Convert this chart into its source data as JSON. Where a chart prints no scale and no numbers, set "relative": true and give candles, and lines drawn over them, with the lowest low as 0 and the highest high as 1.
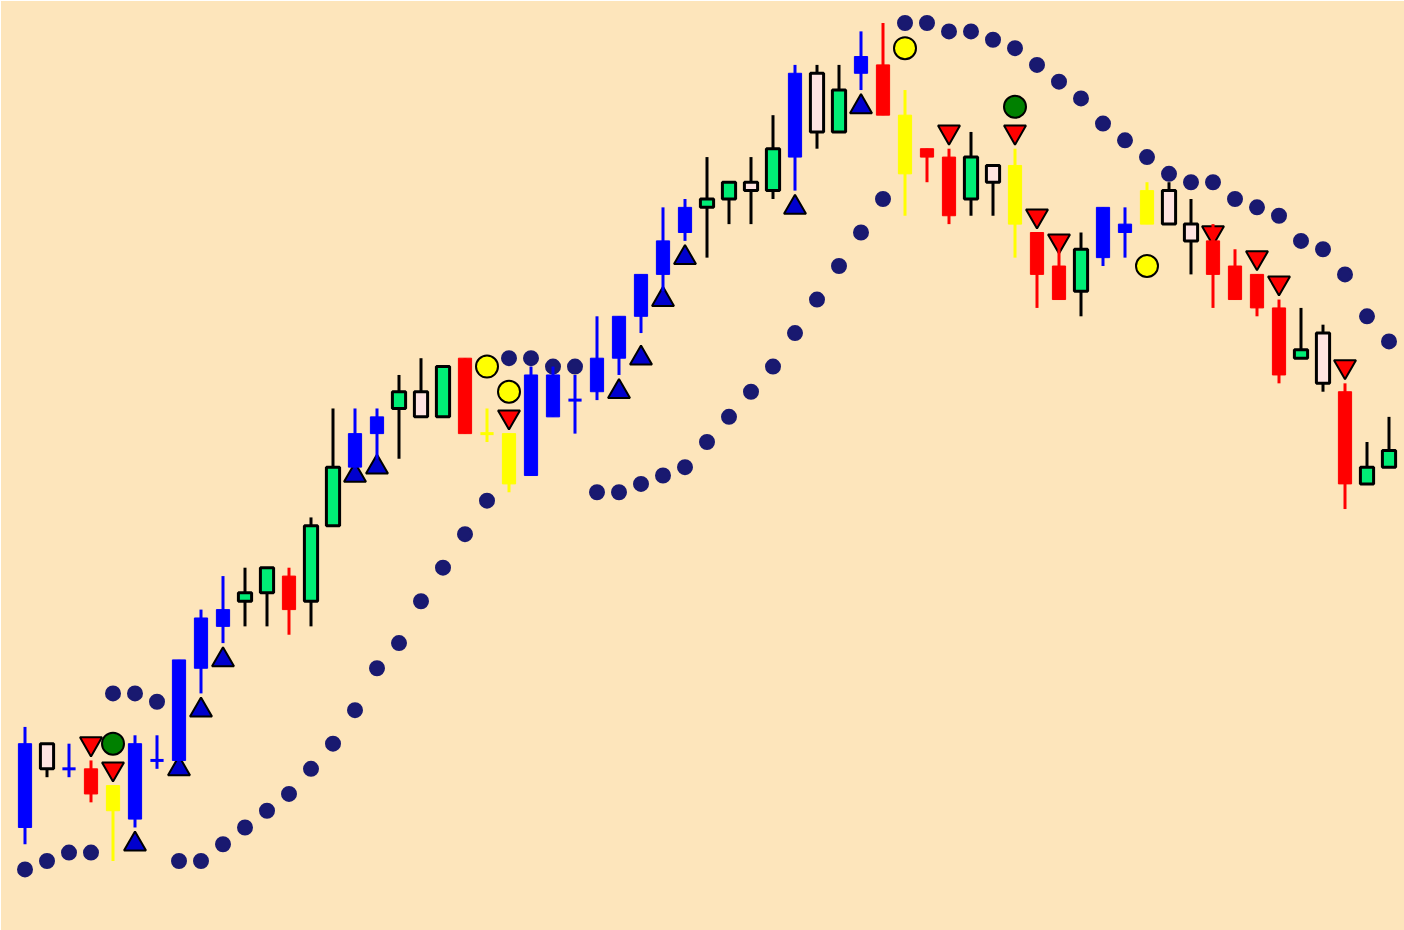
{
  "chart_data": {
    "type": "candlestick",
    "relative": true,
    "categories": [
      null,
      null,
      null,
      null,
      null,
      null,
      null,
      null,
      null,
      null,
      null,
      null,
      null,
      null,
      null,
      null,
      null,
      null,
      null,
      null,
      null,
      null,
      null,
      null,
      null,
      null,
      null,
      null,
      null,
      null,
      null,
      null,
      null,
      null,
      null,
      null,
      null,
      null,
      null,
      null,
      null,
      null,
      null,
      null,
      null,
      null,
      null,
      null,
      null,
      null,
      null,
      null,
      null,
      null,
      null,
      null,
      null,
      null,
      null,
      null,
      null,
      null,
      null
    ],
    "ohlc": [
      [
        0.04,
        0.16,
        0.02,
        0.14
      ],
      [
        0.11,
        0.14,
        0.1,
        0.14
      ],
      [
        0.11,
        0.14,
        0.1,
        0.11
      ],
      [
        0.11,
        0.12,
        0.07,
        0.08
      ],
      [
        0.09,
        0.09,
        0,
        0.06
      ],
      [
        0.05,
        0.15,
        0.04,
        0.14
      ],
      [
        0.12,
        0.15,
        0.11,
        0.12
      ],
      [
        0.12,
        0.24,
        0.12,
        0.24
      ],
      [
        0.23,
        0.3,
        0.2,
        0.29
      ],
      [
        0.28,
        0.34,
        0.26,
        0.3
      ],
      [
        0.31,
        0.35,
        0.28,
        0.32
      ],
      [
        0.32,
        0.35,
        0.28,
        0.35
      ],
      [
        0.34,
        0.35,
        0.27,
        0.3
      ],
      [
        0.31,
        0.41,
        0.28,
        0.4
      ],
      [
        0.4,
        0.54,
        0.4,
        0.47
      ],
      [
        0.47,
        0.54,
        0.47,
        0.51
      ],
      [
        0.51,
        0.54,
        0.48,
        0.53
      ],
      [
        0.54,
        0.58,
        0.48,
        0.56
      ],
      [
        0.53,
        0.6,
        0.53,
        0.56
      ],
      [
        0.53,
        0.59,
        0.53,
        0.59
      ],
      [
        0.6,
        0.6,
        0.51,
        0.51
      ],
      [
        0.51,
        0.54,
        0.5,
        0.51
      ],
      [
        0.51,
        0.51,
        0.44,
        0.45
      ],
      [
        0.46,
        0.59,
        0.46,
        0.58
      ],
      [
        0.53,
        0.59,
        0.53,
        0.58
      ],
      [
        0.55,
        0.58,
        0.51,
        0.55
      ],
      [
        0.56,
        0.65,
        0.55,
        0.6
      ],
      [
        0.6,
        0.65,
        0.58,
        0.65
      ],
      [
        0.65,
        0.7,
        0.63,
        0.7
      ],
      [
        0.7,
        0.78,
        0.68,
        0.74
      ],
      [
        0.75,
        0.79,
        0.74,
        0.78
      ],
      [
        0.78,
        0.84,
        0.72,
        0.79
      ],
      [
        0.79,
        0.81,
        0.76,
        0.81
      ],
      [
        0.8,
        0.84,
        0.76,
        0.81
      ],
      [
        0.8,
        0.89,
        0.79,
        0.85
      ],
      [
        0.84,
        0.95,
        0.8,
        0.94
      ],
      [
        0.87,
        0.95,
        0.85,
        0.94
      ],
      [
        0.87,
        0.95,
        0.87,
        0.92
      ],
      [
        0.94,
        0.99,
        0.92,
        0.96
      ],
      [
        0.95,
        1,
        0.89,
        0.89
      ],
      [
        0.89,
        0.92,
        0.77,
        0.82
      ],
      [
        0.85,
        0.85,
        0.81,
        0.84
      ],
      [
        0.84,
        0.85,
        0.76,
        0.77
      ],
      [
        0.79,
        0.87,
        0.77,
        0.84
      ],
      [
        0.81,
        0.83,
        0.77,
        0.83
      ],
      [
        0.83,
        0.85,
        0.72,
        0.76
      ],
      [
        0.75,
        0.75,
        0.66,
        0.7
      ],
      [
        0.71,
        0.73,
        0.67,
        0.67
      ],
      [
        0.68,
        0.75,
        0.65,
        0.73
      ],
      [
        0.72,
        0.78,
        0.71,
        0.78
      ],
      [
        0.75,
        0.78,
        0.72,
        0.76
      ],
      [
        0.8,
        0.81,
        0.76,
        0.76
      ],
      [
        0.76,
        0.81,
        0.76,
        0.8
      ],
      [
        0.74,
        0.79,
        0.7,
        0.76
      ],
      [
        0.74,
        0.76,
        0.66,
        0.7
      ],
      [
        0.71,
        0.73,
        0.67,
        0.67
      ],
      [
        0.7,
        0.7,
        0.65,
        0.66
      ],
      [
        0.66,
        0.67,
        0.57,
        0.58
      ],
      [
        0.6,
        0.66,
        0.6,
        0.61
      ],
      [
        0.57,
        0.64,
        0.56,
        0.63
      ],
      [
        0.56,
        0.57,
        0.42,
        0.45
      ],
      [
        0.45,
        0.5,
        0.45,
        0.47
      ],
      [
        0.47,
        0.53,
        0.47,
        0.49
      ]
    ],
    "colors": [
      "#0000ff",
      "#ffe4e1",
      "#0000ff",
      "#ff0000",
      "#ffff00",
      "#0000ff",
      "#0000ff",
      "#0000ff",
      "#0000ff",
      "#0000ff",
      "#00ee76",
      "#00ee76",
      "#ff0000",
      "#00ee76",
      "#00ee76",
      "#0000ff",
      "#0000ff",
      "#00ee76",
      "#ffe4e1",
      "#00ee76",
      "#ff0000",
      "#ffff00",
      "#ffff00",
      "#0000ff",
      "#0000ff",
      "#0000ff",
      "#0000ff",
      "#0000ff",
      "#0000ff",
      "#0000ff",
      "#0000ff",
      "#00ee76",
      "#00ee76",
      "#ffe4e1",
      "#00ee76",
      "#0000ff",
      "#ffe4e1",
      "#00ee76",
      "#0000ff",
      "#ff0000",
      "#ffff00",
      "#ff0000",
      "#ff0000",
      "#00ee76",
      "#ffe4e1",
      "#ffff00",
      "#ff0000",
      "#ff0000",
      "#00ee76",
      "#0000ff",
      "#0000ff",
      "#ffff00",
      "#ffe4e1",
      "#ffe4e1",
      "#ff0000",
      "#ff0000",
      "#ff0000",
      "#ff0000",
      "#00ee76",
      "#ffe4e1",
      "#ff0000",
      "#00ee76",
      "#00ee76"
    ],
    "series": [
      {
        "type": "scatter",
        "marker": "circle",
        "color": "#191970",
        "values": [
          -0.01,
          0,
          0.01,
          0.01,
          0.2,
          0.2,
          0.19,
          0,
          0,
          0.02,
          0.04,
          0.06,
          0.08,
          0.11,
          0.14,
          0.18,
          0.23,
          0.26,
          0.31,
          0.35,
          0.39,
          0.43,
          0.6,
          0.6,
          0.59,
          0.59,
          0.44,
          0.44,
          0.45,
          0.46,
          0.47,
          0.5,
          0.53,
          0.56,
          0.59,
          0.63,
          0.67,
          0.71,
          0.75,
          0.79,
          1.0,
          1.0,
          0.99,
          0.99,
          0.98,
          0.97,
          0.95,
          0.93,
          0.91,
          0.88,
          0.86,
          0.84,
          0.82,
          0.81,
          0.81,
          0.79,
          0.78,
          0.77,
          0.74,
          0.73,
          0.7,
          0.65,
          0.62
        ]
      },
      {
        "type": "scatter",
        "marker": "triangle",
        "color": "#0000cd",
        "values": [
          null,
          null,
          null,
          null,
          null,
          0.02,
          null,
          0.11,
          0.18,
          0.24,
          null,
          null,
          null,
          null,
          null,
          0.46,
          0.47,
          null,
          null,
          null,
          null,
          null,
          null,
          null,
          null,
          null,
          null,
          0.56,
          0.6,
          0.67,
          0.72,
          null,
          null,
          null,
          null,
          0.78,
          null,
          null,
          0.9,
          null,
          null,
          null,
          null,
          null,
          null,
          null,
          null,
          null,
          null,
          null,
          null,
          null,
          null,
          null,
          null,
          null,
          null,
          null,
          null,
          null,
          null,
          null,
          null
        ]
      },
      {
        "type": "scatter",
        "marker": "triangle",
        "color": "#ff0000",
        "values": [
          null,
          null,
          null,
          0.14,
          0.11,
          null,
          null,
          null,
          null,
          null,
          null,
          null,
          null,
          null,
          null,
          null,
          null,
          null,
          null,
          null,
          null,
          null,
          0.53,
          null,
          null,
          null,
          null,
          null,
          null,
          null,
          null,
          null,
          null,
          null,
          null,
          null,
          null,
          null,
          null,
          null,
          null,
          null,
          0.87,
          null,
          null,
          0.87,
          0.77,
          0.74,
          null,
          null,
          null,
          null,
          null,
          null,
          0.75,
          null,
          0.72,
          0.69,
          null,
          null,
          0.59,
          null,
          null
        ]
      },
      {
        "type": "scatter",
        "marker": "circle",
        "color": "#ffff00",
        "values": [
          null,
          null,
          null,
          null,
          null,
          null,
          null,
          null,
          null,
          null,
          null,
          null,
          null,
          null,
          null,
          null,
          null,
          null,
          null,
          null,
          null,
          0.59,
          0.56,
          null,
          null,
          null,
          null,
          null,
          null,
          null,
          null,
          null,
          null,
          null,
          null,
          null,
          null,
          null,
          null,
          null,
          0.97,
          null,
          null,
          null,
          null,
          null,
          null,
          null,
          null,
          null,
          null,
          0.71,
          null,
          null,
          null,
          null,
          null,
          null,
          null,
          null,
          null,
          null,
          null
        ]
      },
      {
        "type": "scatter",
        "marker": "circle",
        "color": "#008000",
        "values": [
          null,
          null,
          null,
          null,
          0.14,
          null,
          null,
          null,
          null,
          null,
          null,
          null,
          null,
          null,
          null,
          null,
          null,
          null,
          null,
          null,
          null,
          null,
          null,
          null,
          null,
          null,
          null,
          null,
          null,
          null,
          null,
          null,
          null,
          null,
          null,
          null,
          null,
          null,
          null,
          null,
          null,
          null,
          null,
          null,
          null,
          0.9,
          null,
          null,
          null,
          null,
          null,
          null,
          null,
          null,
          null,
          null,
          null,
          null,
          null,
          null,
          null,
          null,
          null
        ]
      }
    ]
  }
}
